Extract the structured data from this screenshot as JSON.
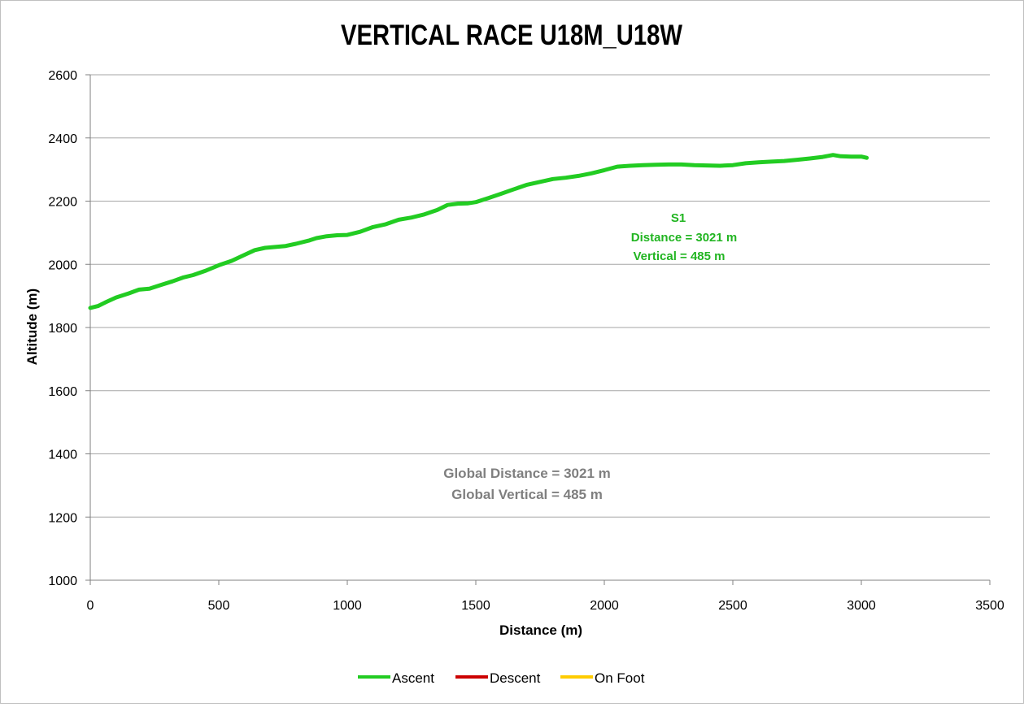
{
  "chart_data": {
    "type": "line",
    "title": "VERTICAL RACE U18M_U18W",
    "xlabel": "Distance (m)",
    "ylabel": "Altitude (m)",
    "xlim": [
      0,
      3500
    ],
    "ylim": [
      1000,
      2600
    ],
    "x_ticks": [
      "0",
      "500",
      "1000",
      "1500",
      "2000",
      "2500",
      "3000",
      "3500"
    ],
    "y_ticks": [
      "1000",
      "1200",
      "1400",
      "1600",
      "1800",
      "2000",
      "2200",
      "2400",
      "2600"
    ],
    "grid": "horizontal",
    "legend_position": "bottom",
    "series": [
      {
        "name": "Ascent",
        "color": "#22cc22",
        "points": [
          [
            0,
            1862
          ],
          [
            30,
            1868
          ],
          [
            60,
            1880
          ],
          [
            100,
            1895
          ],
          [
            150,
            1908
          ],
          [
            190,
            1920
          ],
          [
            230,
            1923
          ],
          [
            280,
            1936
          ],
          [
            320,
            1946
          ],
          [
            360,
            1958
          ],
          [
            400,
            1966
          ],
          [
            450,
            1980
          ],
          [
            500,
            1997
          ],
          [
            550,
            2011
          ],
          [
            600,
            2030
          ],
          [
            640,
            2045
          ],
          [
            680,
            2052
          ],
          [
            720,
            2055
          ],
          [
            760,
            2058
          ],
          [
            800,
            2065
          ],
          [
            850,
            2075
          ],
          [
            880,
            2083
          ],
          [
            920,
            2089
          ],
          [
            960,
            2092
          ],
          [
            1000,
            2093
          ],
          [
            1050,
            2103
          ],
          [
            1100,
            2118
          ],
          [
            1150,
            2127
          ],
          [
            1200,
            2141
          ],
          [
            1250,
            2148
          ],
          [
            1300,
            2158
          ],
          [
            1350,
            2172
          ],
          [
            1390,
            2188
          ],
          [
            1430,
            2192
          ],
          [
            1470,
            2193
          ],
          [
            1500,
            2197
          ],
          [
            1550,
            2210
          ],
          [
            1600,
            2224
          ],
          [
            1650,
            2238
          ],
          [
            1700,
            2252
          ],
          [
            1750,
            2261
          ],
          [
            1800,
            2270
          ],
          [
            1850,
            2274
          ],
          [
            1900,
            2280
          ],
          [
            1950,
            2288
          ],
          [
            2000,
            2298
          ],
          [
            2050,
            2309
          ],
          [
            2100,
            2312
          ],
          [
            2150,
            2314
          ],
          [
            2200,
            2315
          ],
          [
            2250,
            2316
          ],
          [
            2300,
            2316
          ],
          [
            2350,
            2314
          ],
          [
            2400,
            2313
          ],
          [
            2450,
            2312
          ],
          [
            2500,
            2314
          ],
          [
            2550,
            2320
          ],
          [
            2600,
            2323
          ],
          [
            2650,
            2325
          ],
          [
            2700,
            2327
          ],
          [
            2750,
            2331
          ],
          [
            2800,
            2335
          ],
          [
            2850,
            2340
          ],
          [
            2890,
            2346
          ],
          [
            2920,
            2342
          ],
          [
            2960,
            2341
          ],
          [
            3000,
            2341
          ],
          [
            3021,
            2337
          ]
        ]
      },
      {
        "name": "Descent",
        "color": "#cc0000",
        "points": []
      },
      {
        "name": "On Foot",
        "color": "#ffcc00",
        "points": []
      }
    ],
    "annotations": {
      "segment": {
        "title": "S1",
        "distance": "Distance = 3021 m",
        "vertical": "Vertical = 485 m",
        "color": "#22b522"
      },
      "global": {
        "distance": "Global Distance = 3021 m",
        "vertical": "Global Vertical = 485 m",
        "color": "#7f7f7f"
      }
    }
  }
}
